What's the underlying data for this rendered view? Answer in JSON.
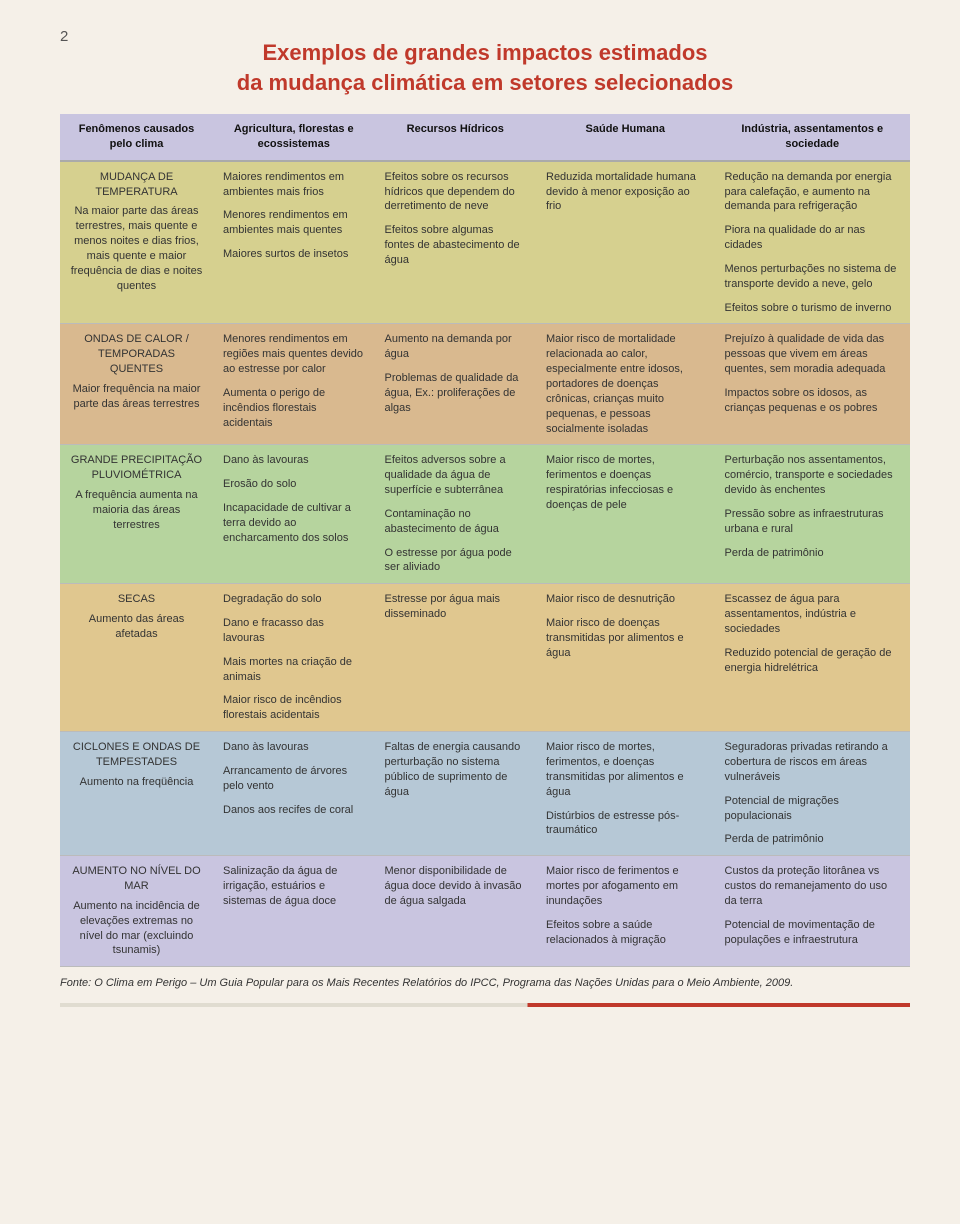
{
  "page_number": "2",
  "title_line1": "Exemplos de grandes impactos estimados",
  "title_line2": "da mudança climática em setores selecionados",
  "columns": {
    "c0": "Fenômenos causados pelo clima",
    "c1": "Agricultura, florestas e ecossistemas",
    "c2": "Recursos Hídricos",
    "c3": "Saúde Humana",
    "c4": "Indústria, assentamentos e sociedade"
  },
  "colors": {
    "header_bg": "#c9c5e0",
    "row_bgs": [
      "#d6d08f",
      "#d9b98f",
      "#b6d49e",
      "#e0c78f",
      "#b6c8d6",
      "#c9c5e0"
    ]
  },
  "rows": [
    {
      "phen_title": "MUDANÇA DE TEMPERATURA",
      "phen_sub": "Na maior parte das áreas terrestres, mais quente e menos noites e dias frios, mais quente e maior frequência de dias e noites quentes",
      "c1": [
        "Maiores rendimentos em ambientes mais frios",
        "Menores rendimentos em ambientes mais quentes",
        "Maiores surtos de insetos"
      ],
      "c2": [
        "Efeitos sobre os recursos hídricos que dependem do derretimento de neve",
        "Efeitos sobre algumas fontes de abastecimento de água"
      ],
      "c3": [
        "Reduzida mortalidade humana devido à menor exposição ao frio"
      ],
      "c4": [
        "Redução na demanda por energia para calefação, e aumento na demanda para refrigeração",
        "Piora na qualidade do ar nas cidades",
        "Menos perturbações no sistema de transporte devido a neve, gelo",
        "Efeitos sobre o turismo de inverno"
      ]
    },
    {
      "phen_title": "ONDAS DE CALOR / TEMPORADAS QUENTES",
      "phen_sub": "Maior frequência na maior parte das áreas terrestres",
      "c1": [
        "Menores rendimentos em regiões mais quentes devido ao estresse por calor",
        "Aumenta o perigo de incêndios florestais acidentais"
      ],
      "c2": [
        "Aumento na demanda por água",
        "Problemas de qualidade da água, Ex.: proliferações de algas"
      ],
      "c3": [
        "Maior risco de mortalidade relacionada ao calor, especialmente entre idosos, portadores de doenças crônicas, crianças muito pequenas, e pessoas socialmente isoladas"
      ],
      "c4": [
        "Prejuízo à qualidade de vida das pessoas que vivem em áreas quentes, sem moradia adequada",
        "Impactos sobre os idosos, as crianças pequenas e os pobres"
      ]
    },
    {
      "phen_title": "GRANDE PRECIPITAÇÃO PLUVIOMÉTRICA",
      "phen_sub": "A frequência aumenta na maioria das áreas terrestres",
      "c1": [
        "Dano às lavouras",
        "Erosão do solo",
        "Incapacidade de cultivar a terra devido ao encharcamento dos solos"
      ],
      "c2": [
        "Efeitos adversos sobre a qualidade da água de superfície e subterrânea",
        "Contaminação no abastecimento de água",
        "O estresse por água pode ser aliviado"
      ],
      "c3": [
        "Maior risco de mortes, ferimentos e doenças respiratórias infecciosas e doenças de pele"
      ],
      "c4": [
        "Perturbação nos assentamentos, comércio, transporte e sociedades devido às enchentes",
        "Pressão sobre as infraestruturas urbana e rural",
        "Perda de patrimônio"
      ]
    },
    {
      "phen_title": "SECAS",
      "phen_sub": "Aumento das áreas afetadas",
      "c1": [
        "Degradação do solo",
        "Dano e fracasso das lavouras",
        "Mais mortes na criação de animais",
        "Maior risco de incêndios florestais acidentais"
      ],
      "c2": [
        "Estresse por água mais disseminado"
      ],
      "c3": [
        "Maior risco de desnutrição",
        "Maior risco de doenças transmitidas por alimentos e água"
      ],
      "c4": [
        "Escassez de água para assentamentos, indústria e sociedades",
        "Reduzido potencial de geração de energia hidrelétrica"
      ]
    },
    {
      "phen_title": "CICLONES E ONDAS DE TEMPESTADES",
      "phen_sub": "Aumento na freqüência",
      "c1": [
        "Dano às lavouras",
        "Arrancamento de árvores pelo vento",
        "Danos aos recifes de coral"
      ],
      "c2": [
        "Faltas de energia causando perturbação no sistema público de suprimento de água"
      ],
      "c3": [
        "Maior risco de mortes, ferimentos, e doenças transmitidas por alimentos e água",
        "Distúrbios de estresse pós-traumático"
      ],
      "c4": [
        "Seguradoras privadas retirando a cobertura de riscos em áreas vulneráveis",
        "Potencial de migrações populacionais",
        "Perda de patrimônio"
      ]
    },
    {
      "phen_title": "AUMENTO NO NÍVEL DO MAR",
      "phen_sub": "Aumento na incidência de elevações extremas no nível do mar (excluindo tsunamis)",
      "c1": [
        "Salinização da água de irrigação, estuários e sistemas de água doce"
      ],
      "c2": [
        "Menor disponibilidade de água doce devido à invasão de água salgada"
      ],
      "c3": [
        "Maior risco de ferimentos e mortes por afogamento em inundações",
        "Efeitos sobre a saúde relacionados à migração"
      ],
      "c4": [
        "Custos da proteção litorânea vs custos do remanejamento do uso da terra",
        "Potencial de movimentação de populações e infraestrutura"
      ]
    }
  ],
  "source": "Fonte: O Clima em Perigo – Um Guia Popular para os Mais Recentes Relatórios do IPCC, Programa das Nações Unidas para o Meio Ambiente, 2009."
}
